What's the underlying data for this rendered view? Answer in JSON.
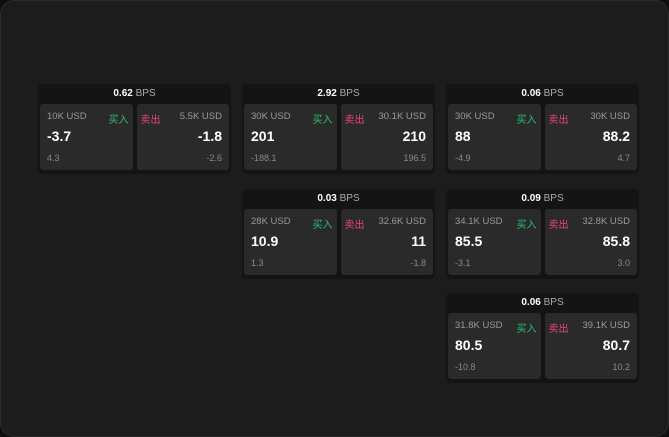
{
  "labels": {
    "buy": "买入",
    "sell": "卖出",
    "unit": "BPS"
  },
  "colors": {
    "buy": "#2fbf71",
    "sell": "#e8457a"
  },
  "cards": [
    {
      "spread": "0.62",
      "buy": {
        "amount": "10K USD",
        "price": "-3.7",
        "change": "4.3"
      },
      "sell": {
        "amount": "5.5K USD",
        "price": "-1.8",
        "change": "-2.6"
      }
    },
    {
      "spread": "2.92",
      "buy": {
        "amount": "30K USD",
        "price": "201",
        "change": "-188.1"
      },
      "sell": {
        "amount": "30.1K USD",
        "price": "210",
        "change": "196.5"
      }
    },
    {
      "spread": "0.06",
      "buy": {
        "amount": "30K USD",
        "price": "88",
        "change": "-4.9"
      },
      "sell": {
        "amount": "30K USD",
        "price": "88.2",
        "change": "4.7"
      }
    },
    {
      "spread": "0.03",
      "buy": {
        "amount": "28K USD",
        "price": "10.9",
        "change": "1.3"
      },
      "sell": {
        "amount": "32.6K USD",
        "price": "11",
        "change": "-1.8"
      }
    },
    {
      "spread": "0.09",
      "buy": {
        "amount": "34.1K USD",
        "price": "85.5",
        "change": "-3.1"
      },
      "sell": {
        "amount": "32.8K USD",
        "price": "85.8",
        "change": "3.0"
      }
    },
    {
      "spread": "0.06",
      "buy": {
        "amount": "31.8K USD",
        "price": "80.5",
        "change": "-10.8"
      },
      "sell": {
        "amount": "39.1K USD",
        "price": "80.7",
        "change": "10.2"
      }
    }
  ]
}
